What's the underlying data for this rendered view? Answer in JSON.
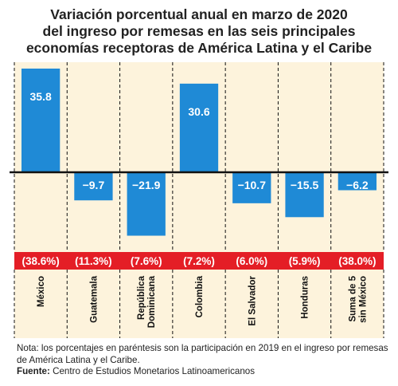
{
  "title_lines": [
    "Variación porcentual anual en marzo de 2020",
    "del ingreso por remesas en las seis principales",
    "economías receptoras de América Latina y el Caribe"
  ],
  "chart_data": {
    "type": "bar",
    "title": "Variación porcentual anual en marzo de 2020 del ingreso por remesas en las seis principales economías receptoras de América Latina y el Caribe",
    "categories": [
      "México",
      "Guatemala",
      "República Dominicana",
      "Colombia",
      "El Salvador",
      "Honduras",
      "Suma de 5 sin México"
    ],
    "category_lines": [
      [
        "México"
      ],
      [
        "Guatemala"
      ],
      [
        "República",
        "Dominicana"
      ],
      [
        "Colombia"
      ],
      [
        "El Salvador"
      ],
      [
        "Honduras"
      ],
      [
        "Suma de 5",
        "sin México"
      ]
    ],
    "values": [
      35.8,
      -9.7,
      -21.9,
      30.6,
      -10.7,
      -15.5,
      -6.2
    ],
    "value_labels": [
      "35.8",
      "−9.7",
      "−21.9",
      "30.6",
      "−10.7",
      "−15.5",
      "−6.2"
    ],
    "shares_2019": [
      "(38.6%)",
      "(11.3%)",
      "(7.6%)",
      "(7.2%)",
      "(6.0%)",
      "(5.9%)",
      "(38.0%)"
    ],
    "colors": {
      "bar": "#1f8ad6",
      "band": "#e41e26",
      "background": "#fdf3dc",
      "separator": "#111111",
      "bar_text": "#ffffff"
    }
  },
  "note": {
    "text": "Nota: los porcentajes en paréntesis son la participación en 2019 en el ingreso por remesas de América Latina y el Caribe.",
    "source_label": "Fuente:",
    "source_text": " Centro de Estudios Monetarios Latinoamericanos"
  }
}
